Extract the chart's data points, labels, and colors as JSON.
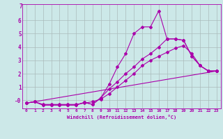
{
  "xlabel": "Windchill (Refroidissement éolien,°C)",
  "bg_color": "#cce8e8",
  "line_color": "#aa00aa",
  "grid_color": "#aabbbb",
  "xlim": [
    -0.5,
    23.5
  ],
  "ylim": [
    -0.6,
    7.2
  ],
  "yticks": [
    0,
    1,
    2,
    3,
    4,
    5,
    6
  ],
  "ytick_labels": [
    "-0",
    "1",
    "2",
    "3",
    "4",
    "5",
    "6"
  ],
  "xticks": [
    0,
    1,
    2,
    3,
    4,
    5,
    6,
    7,
    8,
    9,
    10,
    11,
    12,
    13,
    14,
    15,
    16,
    17,
    18,
    19,
    20,
    21,
    22,
    23
  ],
  "line1_x": [
    0,
    1,
    2,
    3,
    4,
    5,
    6,
    7,
    8,
    9,
    10,
    11,
    12,
    13,
    14,
    15,
    16,
    17,
    18,
    19,
    20,
    21,
    22,
    23
  ],
  "line1_y": [
    -0.2,
    -0.1,
    -0.3,
    -0.3,
    -0.3,
    -0.3,
    -0.3,
    -0.2,
    -0.1,
    0.1,
    0.5,
    1.0,
    1.5,
    2.0,
    2.6,
    3.0,
    3.3,
    3.6,
    3.9,
    4.1,
    3.5,
    2.6,
    2.2,
    2.2
  ],
  "line2_x": [
    0,
    1,
    2,
    3,
    4,
    5,
    6,
    7,
    8,
    9,
    10,
    11,
    12,
    13,
    14,
    15,
    16,
    17,
    18,
    19,
    20,
    21,
    22,
    23
  ],
  "line2_y": [
    -0.2,
    -0.1,
    -0.35,
    -0.35,
    -0.35,
    -0.35,
    -0.35,
    -0.15,
    -0.3,
    0.2,
    0.85,
    1.4,
    2.0,
    2.5,
    3.1,
    3.5,
    4.0,
    4.6,
    4.6,
    4.5,
    3.3,
    2.6,
    2.2,
    2.2
  ],
  "line3_x": [
    0,
    1,
    2,
    3,
    4,
    5,
    6,
    7,
    8,
    9,
    10,
    11,
    12,
    13,
    14,
    15,
    16,
    17,
    18,
    19,
    20,
    21,
    22,
    23
  ],
  "line3_y": [
    -0.2,
    -0.1,
    -0.35,
    -0.35,
    -0.35,
    -0.35,
    -0.35,
    -0.15,
    -0.3,
    0.2,
    1.2,
    2.5,
    3.5,
    5.0,
    5.5,
    5.5,
    6.7,
    4.6,
    4.6,
    4.5,
    3.3,
    2.6,
    2.2,
    2.2
  ],
  "line4_x": [
    0,
    23
  ],
  "line4_y": [
    -0.2,
    2.2
  ]
}
